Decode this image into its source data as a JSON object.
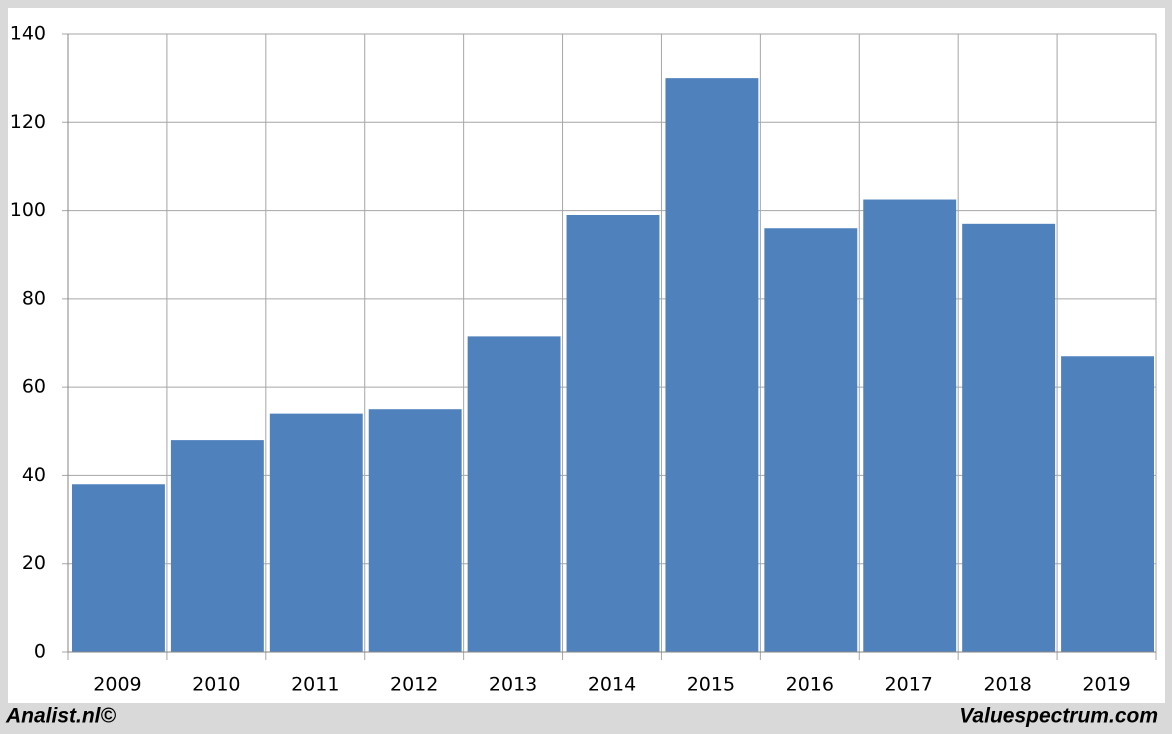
{
  "chart_data": {
    "type": "bar",
    "categories": [
      "2009",
      "2010",
      "2011",
      "2012",
      "2013",
      "2014",
      "2015",
      "2016",
      "2017",
      "2018",
      "2019"
    ],
    "values": [
      38,
      48,
      54,
      55,
      71.5,
      99,
      130,
      96,
      102.5,
      97,
      67
    ],
    "color": "#4f81bd",
    "ylim": [
      0,
      140
    ],
    "yticks": [
      0,
      20,
      40,
      60,
      80,
      100,
      120,
      140
    ],
    "grid": true,
    "credits": [
      "Analist.nl©",
      "Valuespectrum.com"
    ]
  }
}
